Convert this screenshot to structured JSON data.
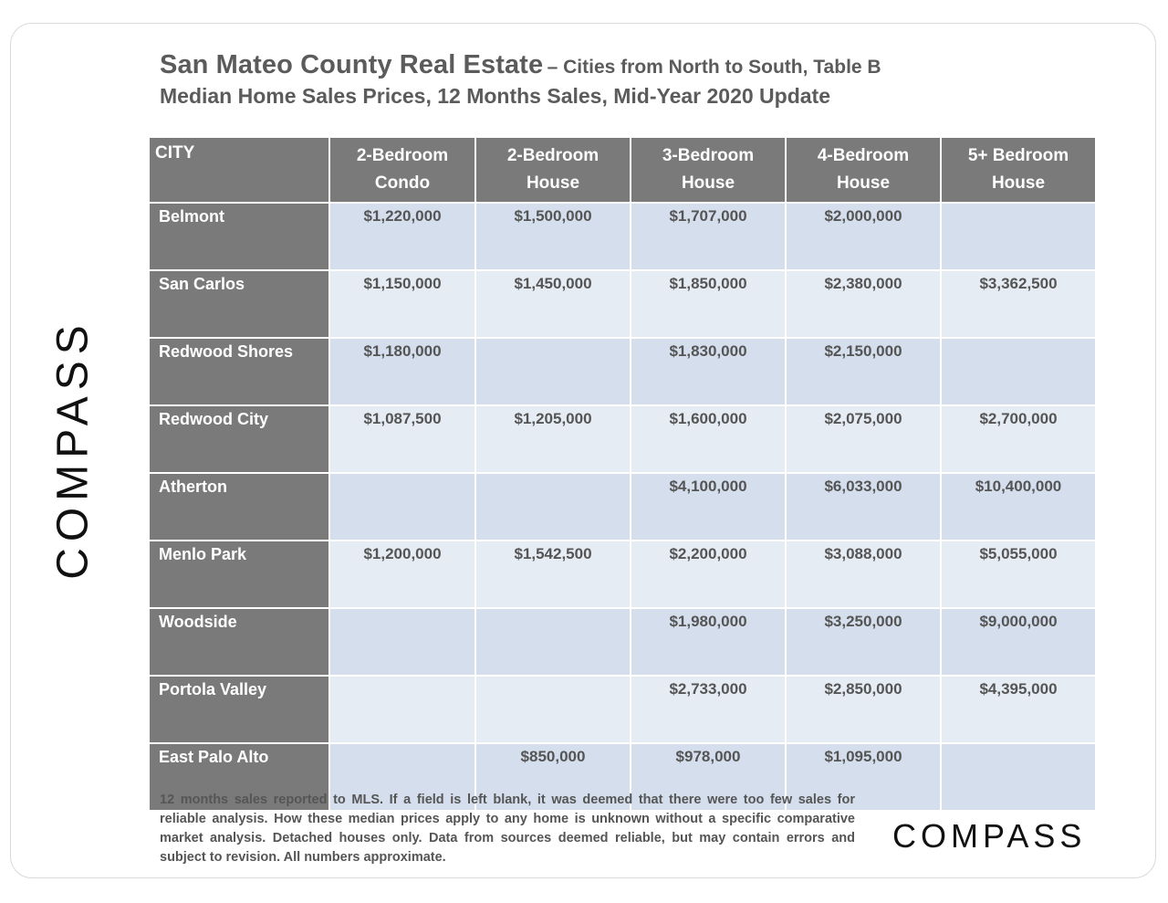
{
  "title": {
    "main": "San Mateo County Real Estate",
    "sub": "– Cities from North to South, Table B",
    "line2": "Median Home Sales Prices, 12 Months Sales, Mid-Year 2020 Update"
  },
  "brand": {
    "side_logo": "COMPASS",
    "bottom_logo": "COMPASS"
  },
  "chart_data": {
    "type": "table",
    "title": "San Mateo County Real Estate – Cities from North to South, Table B",
    "columns": [
      {
        "line1": "CITY",
        "line2": ""
      },
      {
        "line1": "2-Bedroom",
        "line2": "Condo"
      },
      {
        "line1": "2-Bedroom",
        "line2": "House"
      },
      {
        "line1": "3-Bedroom",
        "line2": "House"
      },
      {
        "line1": "4-Bedroom",
        "line2": "House"
      },
      {
        "line1": "5+ Bedroom",
        "line2": "House"
      }
    ],
    "rows": [
      {
        "city": "Belmont",
        "values": [
          "$1,220,000",
          "$1,500,000",
          "$1,707,000",
          "$2,000,000",
          ""
        ]
      },
      {
        "city": "San Carlos",
        "values": [
          "$1,150,000",
          "$1,450,000",
          "$1,850,000",
          "$2,380,000",
          "$3,362,500"
        ]
      },
      {
        "city": "Redwood Shores",
        "values": [
          "$1,180,000",
          "",
          "$1,830,000",
          "$2,150,000",
          ""
        ]
      },
      {
        "city": "Redwood City",
        "values": [
          "$1,087,500",
          "$1,205,000",
          "$1,600,000",
          "$2,075,000",
          "$2,700,000"
        ]
      },
      {
        "city": "Atherton",
        "values": [
          "",
          "",
          "$4,100,000",
          "$6,033,000",
          "$10,400,000"
        ]
      },
      {
        "city": "Menlo Park",
        "values": [
          "$1,200,000",
          "$1,542,500",
          "$2,200,000",
          "$3,088,000",
          "$5,055,000"
        ]
      },
      {
        "city": "Woodside",
        "values": [
          "",
          "",
          "$1,980,000",
          "$3,250,000",
          "$9,000,000"
        ]
      },
      {
        "city": "Portola Valley",
        "values": [
          "",
          "",
          "$2,733,000",
          "$2,850,000",
          "$4,395,000"
        ]
      },
      {
        "city": "East Palo Alto",
        "values": [
          "",
          "$850,000",
          "$978,000",
          "$1,095,000",
          ""
        ]
      }
    ]
  },
  "footnote": "12 months sales reported to MLS. If a field is left blank, it was deemed that there were too few sales for reliable analysis. How these median prices apply to any home is unknown without a specific comparative market analysis. Detached houses only. Data from sources deemed reliable, but may contain errors and subject to revision. All numbers approximate.",
  "colors": {
    "header_bg": "#7a7a7a",
    "row_odd": "#d4deec",
    "row_even": "#e6ecf4",
    "title_text": "#5b5b5b"
  }
}
